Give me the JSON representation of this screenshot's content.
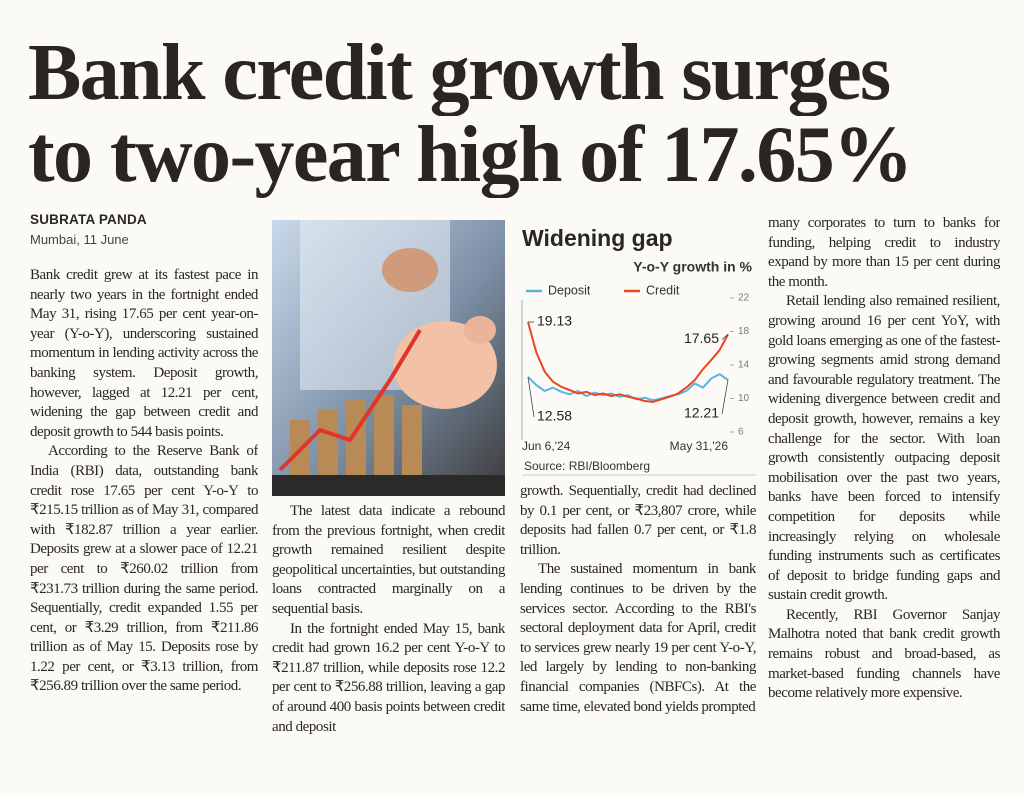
{
  "article": {
    "headline": [
      "Bank credit growth surges",
      "to two-year high of 17.65%"
    ],
    "byline": "SUBRATA PANDA",
    "dateline": "Mumbai, 11 June",
    "columns": [
      [
        "Bank credit grew at its fastest pace in nearly two years in the fortnight ended May 31, rising 17.65 per cent year-on-year (Y-o-Y), underscoring sustained momentum in lending activity across the banking system. Deposit growth, however, lagged at 12.21 per cent, widening the gap between credit and deposit growth to 544 basis points.",
        "According to the Reserve Bank of India (RBI) data, outstanding bank credit rose 17.65 per cent Y-o-Y to ₹215.15 trillion as of May 31, compared with ₹182.87 trillion a year earlier. Deposits grew at a slower pace of 12.21 per cent to ₹260.02 trillion from ₹231.73 trillion during the same period. Sequentially, credit expanded 1.55 per cent, or ₹3.29 trillion, from ₹211.86 trillion as of May 15. Deposits rose by 1.22 per cent, or ₹3.13 trillion, from ₹256.89 trillion over the same period."
      ],
      [
        "The latest data indicate a rebound from the previous fortnight, when credit growth remained resilient despite geopolitical uncertainties, but outstanding loans contracted marginally on a sequential basis.",
        "In the fortnight ended May 15, bank credit had grown 16.2 per cent Y-o-Y to ₹211.87 trillion, while deposits rose 12.2 per cent to ₹256.88 trillion, leaving a gap of around 400 basis points between credit and deposit"
      ],
      [
        "growth. Sequentially, credit had declined by 0.1 per cent, or ₹23,807 crore, while deposits had fallen 0.7 per cent, or ₹1.8 trillion.",
        "The sustained momentum in bank lending continues to be driven by the services sector. According to the RBI's sectoral deployment data for April, credit to services grew nearly 19 per cent Y-o-Y, led largely by lending to non-banking financial companies (NBFCs). At the same time, elevated bond yields prompted"
      ],
      [
        "many corporates to turn to banks for funding, helping credit to industry expand by more than 15 per cent during the month.",
        "Retail lending also remained resilient, growing around 16 per cent YoY, with gold loans emerging as one of the fastest-growing segments amid strong demand and favourable regulatory treatment. The widening divergence between credit and deposit growth, however, remains a key challenge for the sector. With loan growth consistently outpacing deposit mobilisation over the past two years, banks have been forced to intensify competition for deposits while increasingly relying on wholesale funding instruments such as certificates of deposit to bridge funding gaps and sustain credit growth.",
        "Recently, RBI Governor Sanjay Malhotra noted that bank credit growth remains robust and broad-based, as market-based funding channels have become relatively more expensive."
      ]
    ]
  },
  "chart_data": {
    "type": "line",
    "title": "Widening gap",
    "subtitle": "Y-o-Y growth in %",
    "source": "Source: RBI/Bloomberg",
    "categories": [
      "Jun 6,'24",
      null,
      null,
      null,
      null,
      null,
      null,
      null,
      null,
      null,
      null,
      null,
      null,
      null,
      null,
      null,
      null,
      null,
      null,
      null,
      null,
      null,
      null,
      null,
      "May 31,'26"
    ],
    "series": [
      {
        "name": "Deposit",
        "color": "#5ab4e0",
        "values": [
          12.58,
          11.6,
          10.9,
          11.3,
          10.8,
          10.5,
          10.9,
          10.3,
          10.7,
          10.4,
          10.6,
          10.2,
          10.4,
          9.9,
          10.1,
          9.8,
          10.0,
          10.3,
          10.5,
          10.9,
          11.8,
          11.3,
          12.4,
          12.9,
          12.21
        ]
      },
      {
        "name": "Credit",
        "color": "#e8461e",
        "values": [
          19.13,
          15.5,
          13.2,
          12.0,
          11.4,
          11.0,
          10.6,
          10.8,
          10.4,
          10.6,
          10.3,
          10.5,
          10.2,
          10.0,
          9.7,
          9.6,
          9.9,
          10.2,
          10.6,
          11.3,
          12.2,
          13.5,
          14.6,
          15.8,
          17.65
        ]
      }
    ],
    "ylim": [
      6,
      22
    ],
    "yticks": [
      6,
      10,
      14,
      18,
      22
    ],
    "grid": false
  }
}
